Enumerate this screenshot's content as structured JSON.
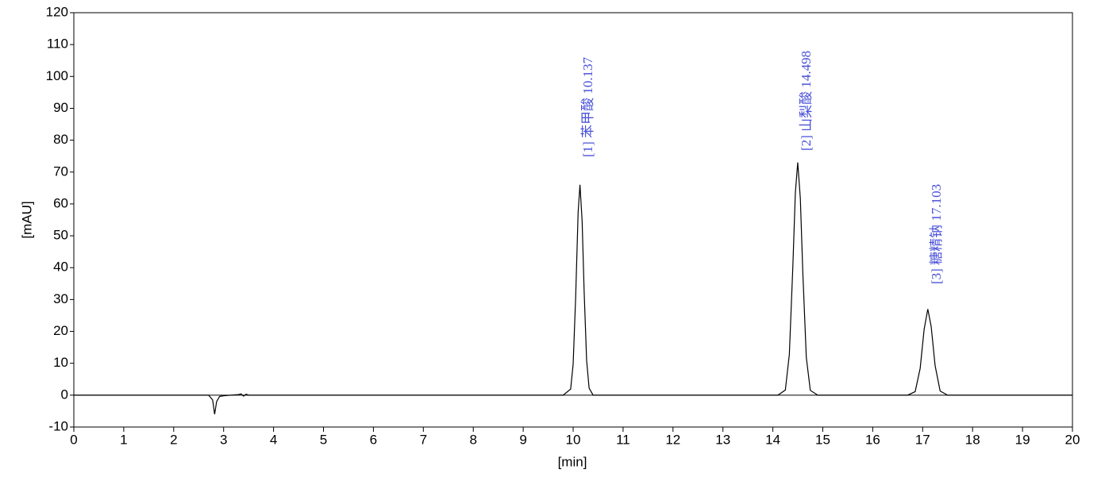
{
  "chart_data": {
    "type": "line",
    "xlabel": "[min]",
    "ylabel": "[mAU]",
    "x": [
      0,
      2.7,
      2.78,
      2.82,
      2.86,
      2.92,
      3.0,
      3.3,
      3.35,
      3.4,
      3.45,
      3.5,
      9.8,
      9.95,
      10.0,
      10.05,
      10.1,
      10.137,
      10.18,
      10.22,
      10.27,
      10.32,
      10.4,
      10.6,
      14.1,
      14.25,
      14.33,
      14.4,
      14.45,
      14.498,
      14.55,
      14.6,
      14.67,
      14.75,
      14.9,
      16.7,
      16.85,
      16.95,
      17.03,
      17.103,
      17.17,
      17.25,
      17.35,
      17.5,
      20
    ],
    "series": [
      {
        "color": "#000000",
        "values": [
          0,
          0,
          -1.5,
          -6,
          -2,
          -0.4,
          -0.2,
          0.2,
          0.4,
          -0.3,
          0.3,
          0,
          0,
          1.9,
          9.7,
          30.5,
          57.4,
          66,
          54.6,
          32.7,
          10.9,
          2.2,
          0,
          0,
          0,
          1.6,
          12.8,
          40.3,
          63.4,
          73,
          61.8,
          38.4,
          11.8,
          1.5,
          0,
          0,
          1.1,
          8.4,
          20.7,
          27,
          21.6,
          9.2,
          1.3,
          0,
          0
        ]
      }
    ],
    "annotations": [
      "[1] 苯甲酸 10.137",
      "[2] 山梨酸 14.498",
      "[3] 糖精钠 17.103"
    ],
    "xlim": [
      0,
      20
    ],
    "xticks": [
      0,
      1,
      2,
      3,
      4,
      5,
      6,
      7,
      8,
      9,
      10,
      11,
      12,
      13,
      14,
      15,
      16,
      17,
      18,
      19,
      20
    ],
    "ylim": [
      -10,
      120
    ],
    "yticks": [
      -10,
      0,
      10,
      20,
      30,
      40,
      50,
      60,
      70,
      80,
      90,
      100,
      110,
      120
    ]
  }
}
